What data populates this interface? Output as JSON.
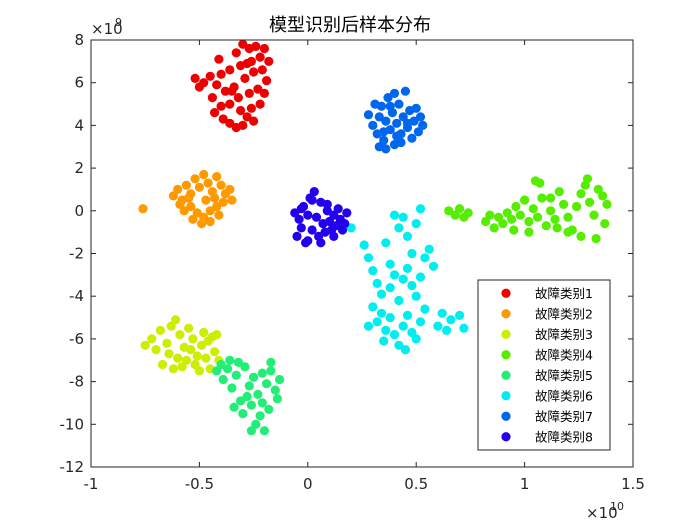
{
  "chart_data": {
    "type": "scatter",
    "title": "模型识别后样本分布",
    "xlabel": "",
    "ylabel": "",
    "x_exponent": {
      "base": "×10",
      "power": "10"
    },
    "y_exponent": {
      "base": "×10",
      "power": "9"
    },
    "xlim": [
      -1,
      1.5
    ],
    "ylim": [
      -12,
      8
    ],
    "xticks": [
      -1,
      -0.5,
      0,
      0.5,
      1,
      1.5
    ],
    "xtick_labels": [
      "-1",
      "-0.5",
      "0",
      "0.5",
      "1",
      "1.5"
    ],
    "yticks": [
      -12,
      -10,
      -8,
      -6,
      -4,
      -2,
      0,
      2,
      4,
      6,
      8
    ],
    "ytick_labels": [
      "-12",
      "-10",
      "-8",
      "-6",
      "-4",
      "-2",
      "0",
      "2",
      "4",
      "6",
      "8"
    ],
    "grid": false,
    "legend": "bottom-right",
    "series": [
      {
        "name": "故障类别1",
        "color": "#ee0000",
        "points": [
          [
            -0.33,
            7.4
          ],
          [
            -0.3,
            7.8
          ],
          [
            -0.27,
            7.6
          ],
          [
            -0.24,
            7.7
          ],
          [
            -0.2,
            7.6
          ],
          [
            -0.22,
            7.2
          ],
          [
            -0.18,
            7.0
          ],
          [
            -0.26,
            7.0
          ],
          [
            -0.31,
            6.8
          ],
          [
            -0.36,
            6.6
          ],
          [
            -0.4,
            6.4
          ],
          [
            -0.45,
            6.3
          ],
          [
            -0.48,
            6.0
          ],
          [
            -0.52,
            6.2
          ],
          [
            -0.5,
            5.8
          ],
          [
            -0.42,
            5.9
          ],
          [
            -0.38,
            5.6
          ],
          [
            -0.34,
            5.8
          ],
          [
            -0.29,
            6.2
          ],
          [
            -0.25,
            6.5
          ],
          [
            -0.21,
            6.6
          ],
          [
            -0.19,
            6.1
          ],
          [
            -0.23,
            5.7
          ],
          [
            -0.27,
            5.5
          ],
          [
            -0.32,
            5.3
          ],
          [
            -0.36,
            5.0
          ],
          [
            -0.4,
            4.9
          ],
          [
            -0.43,
            4.6
          ],
          [
            -0.39,
            4.3
          ],
          [
            -0.36,
            4.1
          ],
          [
            -0.33,
            3.9
          ],
          [
            -0.3,
            4.0
          ],
          [
            -0.28,
            4.4
          ],
          [
            -0.26,
            4.8
          ],
          [
            -0.22,
            5.0
          ],
          [
            -0.2,
            5.5
          ],
          [
            -0.25,
            4.2
          ],
          [
            -0.31,
            4.7
          ],
          [
            -0.35,
            5.6
          ],
          [
            -0.44,
            5.3
          ],
          [
            -0.41,
            7.1
          ],
          [
            -0.28,
            6.9
          ]
        ]
      },
      {
        "name": "故障类别2",
        "color": "#ff9900",
        "points": [
          [
            -0.76,
            0.1
          ],
          [
            -0.62,
            0.7
          ],
          [
            -0.6,
            1.0
          ],
          [
            -0.58,
            0.5
          ],
          [
            -0.56,
            1.2
          ],
          [
            -0.54,
            0.8
          ],
          [
            -0.52,
            1.5
          ],
          [
            -0.5,
            1.1
          ],
          [
            -0.48,
            1.7
          ],
          [
            -0.46,
            1.3
          ],
          [
            -0.44,
            0.9
          ],
          [
            -0.42,
            1.6
          ],
          [
            -0.4,
            1.2
          ],
          [
            -0.38,
            0.8
          ],
          [
            -0.36,
            1.0
          ],
          [
            -0.39,
            0.4
          ],
          [
            -0.42,
            0.2
          ],
          [
            -0.45,
            0.0
          ],
          [
            -0.48,
            -0.3
          ],
          [
            -0.51,
            -0.1
          ],
          [
            -0.54,
            0.2
          ],
          [
            -0.57,
            0.0
          ],
          [
            -0.53,
            -0.4
          ],
          [
            -0.49,
            -0.6
          ],
          [
            -0.45,
            -0.5
          ],
          [
            -0.41,
            -0.2
          ],
          [
            -0.43,
            0.6
          ],
          [
            -0.47,
            0.5
          ],
          [
            -0.55,
            0.6
          ],
          [
            -0.59,
            0.3
          ],
          [
            -0.35,
            0.5
          ]
        ]
      },
      {
        "name": "故障类别3",
        "color": "#ccee00",
        "points": [
          [
            -0.75,
            -6.3
          ],
          [
            -0.72,
            -6.0
          ],
          [
            -0.7,
            -6.5
          ],
          [
            -0.68,
            -5.6
          ],
          [
            -0.65,
            -6.2
          ],
          [
            -0.63,
            -5.4
          ],
          [
            -0.61,
            -5.1
          ],
          [
            -0.59,
            -5.8
          ],
          [
            -0.57,
            -6.4
          ],
          [
            -0.55,
            -5.5
          ],
          [
            -0.53,
            -6.0
          ],
          [
            -0.51,
            -6.8
          ],
          [
            -0.49,
            -6.3
          ],
          [
            -0.47,
            -6.9
          ],
          [
            -0.45,
            -7.4
          ],
          [
            -0.43,
            -6.6
          ],
          [
            -0.41,
            -7.0
          ],
          [
            -0.44,
            -5.9
          ],
          [
            -0.48,
            -5.7
          ],
          [
            -0.52,
            -7.2
          ],
          [
            -0.56,
            -7.0
          ],
          [
            -0.6,
            -6.9
          ],
          [
            -0.64,
            -6.7
          ],
          [
            -0.67,
            -7.2
          ],
          [
            -0.62,
            -7.4
          ],
          [
            -0.58,
            -7.3
          ],
          [
            -0.54,
            -6.5
          ],
          [
            -0.46,
            -6.1
          ],
          [
            -0.42,
            -5.8
          ],
          [
            -0.5,
            -7.5
          ]
        ]
      },
      {
        "name": "故障类别4",
        "color": "#55ee00",
        "points": [
          [
            0.65,
            0.0
          ],
          [
            0.68,
            -0.2
          ],
          [
            0.7,
            0.1
          ],
          [
            0.72,
            -0.3
          ],
          [
            0.74,
            -0.1
          ],
          [
            0.82,
            -0.5
          ],
          [
            0.84,
            -0.2
          ],
          [
            0.86,
            -0.8
          ],
          [
            0.88,
            -0.3
          ],
          [
            0.9,
            -0.6
          ],
          [
            0.92,
            -0.1
          ],
          [
            0.94,
            -0.4
          ],
          [
            0.96,
            0.2
          ],
          [
            0.98,
            -0.2
          ],
          [
            1.0,
            0.5
          ],
          [
            1.02,
            -0.5
          ],
          [
            1.04,
            0.1
          ],
          [
            1.06,
            -0.3
          ],
          [
            1.08,
            0.6
          ],
          [
            1.1,
            -0.7
          ],
          [
            1.12,
            0.0
          ],
          [
            1.14,
            -0.4
          ],
          [
            1.16,
            0.9
          ],
          [
            1.18,
            0.3
          ],
          [
            1.2,
            -0.3
          ],
          [
            1.22,
            -0.9
          ],
          [
            1.24,
            0.2
          ],
          [
            1.26,
            0.8
          ],
          [
            1.28,
            1.2
          ],
          [
            1.3,
            0.4
          ],
          [
            1.32,
            -0.2
          ],
          [
            1.34,
            1.0
          ],
          [
            1.36,
            0.7
          ],
          [
            1.38,
            0.3
          ],
          [
            1.26,
            -1.2
          ],
          [
            1.2,
            -1.0
          ],
          [
            1.33,
            -1.3
          ],
          [
            1.05,
            1.4
          ],
          [
            1.07,
            1.3
          ],
          [
            1.12,
            0.6
          ],
          [
            0.95,
            -0.9
          ],
          [
            1.15,
            -0.8
          ],
          [
            1.29,
            1.5
          ],
          [
            1.37,
            -0.6
          ],
          [
            1.02,
            -1.0
          ]
        ]
      },
      {
        "name": "故障类别5",
        "color": "#22ee77",
        "points": [
          [
            -0.42,
            -7.5
          ],
          [
            -0.39,
            -7.9
          ],
          [
            -0.37,
            -7.4
          ],
          [
            -0.35,
            -8.3
          ],
          [
            -0.33,
            -7.7
          ],
          [
            -0.31,
            -8.9
          ],
          [
            -0.29,
            -7.3
          ],
          [
            -0.27,
            -8.2
          ],
          [
            -0.25,
            -7.8
          ],
          [
            -0.23,
            -8.6
          ],
          [
            -0.21,
            -7.6
          ],
          [
            -0.19,
            -8.1
          ],
          [
            -0.17,
            -7.5
          ],
          [
            -0.15,
            -8.4
          ],
          [
            -0.13,
            -7.9
          ],
          [
            -0.34,
            -9.2
          ],
          [
            -0.3,
            -9.5
          ],
          [
            -0.26,
            -9.1
          ],
          [
            -0.22,
            -9.6
          ],
          [
            -0.18,
            -9.3
          ],
          [
            -0.24,
            -10.0
          ],
          [
            -0.2,
            -10.3
          ],
          [
            -0.26,
            -10.3
          ],
          [
            -0.28,
            -8.7
          ],
          [
            -0.32,
            -7.1
          ],
          [
            -0.36,
            -7.0
          ],
          [
            -0.4,
            -7.2
          ],
          [
            -0.17,
            -7.1
          ],
          [
            -0.14,
            -8.8
          ],
          [
            -0.21,
            -9.0
          ]
        ]
      },
      {
        "name": "故障类别6",
        "color": "#00eeee",
        "points": [
          [
            0.2,
            -0.8
          ],
          [
            0.26,
            -1.6
          ],
          [
            0.28,
            -2.2
          ],
          [
            0.3,
            -2.8
          ],
          [
            0.32,
            -3.4
          ],
          [
            0.34,
            -3.9
          ],
          [
            0.36,
            -1.5
          ],
          [
            0.38,
            -2.5
          ],
          [
            0.4,
            -3.0
          ],
          [
            0.42,
            -0.8
          ],
          [
            0.44,
            -0.3
          ],
          [
            0.46,
            -1.2
          ],
          [
            0.48,
            -2.0
          ],
          [
            0.5,
            -0.6
          ],
          [
            0.52,
            0.1
          ],
          [
            0.4,
            -0.2
          ],
          [
            0.38,
            -3.6
          ],
          [
            0.42,
            -4.2
          ],
          [
            0.44,
            -3.2
          ],
          [
            0.46,
            -2.7
          ],
          [
            0.48,
            -3.5
          ],
          [
            0.5,
            -4.0
          ],
          [
            0.52,
            -3.1
          ],
          [
            0.54,
            -2.2
          ],
          [
            0.56,
            -1.8
          ],
          [
            0.58,
            -2.6
          ],
          [
            0.3,
            -4.5
          ],
          [
            0.32,
            -5.2
          ],
          [
            0.34,
            -4.8
          ],
          [
            0.36,
            -5.6
          ],
          [
            0.38,
            -5.0
          ],
          [
            0.4,
            -5.8
          ],
          [
            0.42,
            -6.3
          ],
          [
            0.44,
            -5.4
          ],
          [
            0.46,
            -4.9
          ],
          [
            0.48,
            -5.7
          ],
          [
            0.5,
            -6.0
          ],
          [
            0.52,
            -5.2
          ],
          [
            0.54,
            -4.6
          ],
          [
            0.6,
            -5.4
          ],
          [
            0.62,
            -4.8
          ],
          [
            0.64,
            -5.6
          ],
          [
            0.66,
            -5.1
          ],
          [
            0.7,
            -4.9
          ],
          [
            0.72,
            -5.5
          ],
          [
            0.28,
            -5.4
          ],
          [
            0.35,
            -6.1
          ],
          [
            0.45,
            -6.5
          ]
        ]
      },
      {
        "name": "故障类别7",
        "color": "#0066ee",
        "points": [
          [
            0.28,
            4.5
          ],
          [
            0.3,
            4.0
          ],
          [
            0.31,
            5.0
          ],
          [
            0.32,
            3.6
          ],
          [
            0.33,
            4.4
          ],
          [
            0.34,
            4.9
          ],
          [
            0.35,
            3.3
          ],
          [
            0.36,
            4.2
          ],
          [
            0.37,
            5.3
          ],
          [
            0.38,
            3.8
          ],
          [
            0.39,
            4.6
          ],
          [
            0.4,
            3.1
          ],
          [
            0.41,
            4.1
          ],
          [
            0.42,
            5.0
          ],
          [
            0.43,
            3.6
          ],
          [
            0.44,
            4.4
          ],
          [
            0.45,
            5.6
          ],
          [
            0.46,
            3.9
          ],
          [
            0.47,
            4.7
          ],
          [
            0.48,
            3.4
          ],
          [
            0.49,
            4.2
          ],
          [
            0.5,
            4.8
          ],
          [
            0.51,
            3.7
          ],
          [
            0.52,
            4.4
          ],
          [
            0.53,
            4.0
          ],
          [
            0.36,
            2.9
          ],
          [
            0.4,
            5.5
          ],
          [
            0.33,
            3.0
          ],
          [
            0.43,
            3.2
          ],
          [
            0.38,
            4.9
          ],
          [
            0.46,
            4.1
          ],
          [
            0.35,
            3.7
          ],
          [
            0.41,
            3.5
          ]
        ]
      },
      {
        "name": "故障类别8",
        "color": "#2200ee",
        "points": [
          [
            -0.05,
            -1.2
          ],
          [
            -0.04,
            -0.4
          ],
          [
            -0.03,
            -0.8
          ],
          [
            -0.02,
            0.2
          ],
          [
            -0.01,
            -1.5
          ],
          [
            0.0,
            -0.2
          ],
          [
            0.01,
            0.6
          ],
          [
            0.02,
            -0.9
          ],
          [
            0.03,
            0.9
          ],
          [
            0.04,
            -0.3
          ],
          [
            0.05,
            -1.2
          ],
          [
            0.06,
            0.4
          ],
          [
            0.07,
            -0.6
          ],
          [
            0.08,
            -1.0
          ],
          [
            0.09,
            0.0
          ],
          [
            0.1,
            -0.5
          ],
          [
            0.11,
            -0.9
          ],
          [
            0.12,
            -0.2
          ],
          [
            0.13,
            -0.7
          ],
          [
            0.14,
            0.1
          ],
          [
            0.15,
            -0.4
          ],
          [
            0.16,
            -0.9
          ],
          [
            0.17,
            -0.6
          ],
          [
            0.18,
            -0.1
          ],
          [
            -0.06,
            -0.1
          ],
          [
            0.0,
            -1.4
          ],
          [
            0.06,
            -1.5
          ],
          [
            0.02,
            0.5
          ],
          [
            0.09,
            0.3
          ],
          [
            -0.03,
            0.1
          ],
          [
            0.12,
            -1.2
          ]
        ]
      }
    ]
  }
}
